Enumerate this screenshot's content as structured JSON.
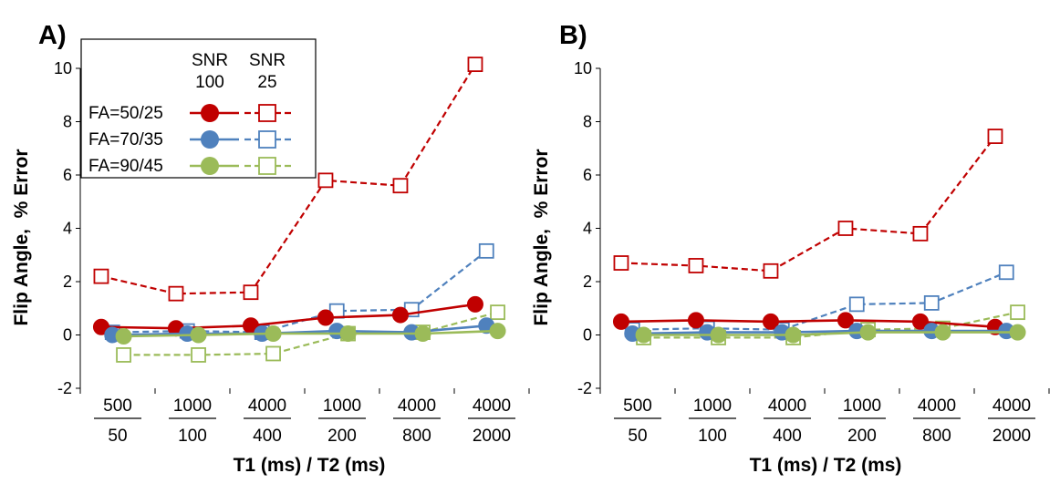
{
  "figure": {
    "y_axis_title": "Flip Angle,  % Error",
    "x_axis_title": "T1 (ms) / T2 (ms)"
  },
  "legend": {
    "col1_line1": "SNR",
    "col1_line2": "100",
    "col2_line1": "SNR",
    "col2_line2": "25",
    "entries": [
      "FA=50/25",
      "FA=70/35",
      "FA=90/45"
    ]
  },
  "colors": {
    "red": "#c00000",
    "blue": "#4f81bd",
    "green": "#9bbb59"
  },
  "chart_data": [
    {
      "type": "line",
      "panel_label": "A)",
      "xlabel": "T1 (ms) / T2 (ms)",
      "ylabel": "Flip Angle,  % Error",
      "ylim": [
        -2,
        10
      ],
      "yticks": [
        "-2",
        "0",
        "2",
        "4",
        "6",
        "8",
        "10"
      ],
      "categories": [
        {
          "t1": "500",
          "t2": "50"
        },
        {
          "t1": "1000",
          "t2": "100"
        },
        {
          "t1": "4000",
          "t2": "400"
        },
        {
          "t1": "1000",
          "t2": "200"
        },
        {
          "t1": "4000",
          "t2": "800"
        },
        {
          "t1": "4000",
          "t2": "2000"
        }
      ],
      "series": [
        {
          "name": "FA=50/25 SNR 100",
          "color": "red",
          "marker": "circle",
          "dash": false,
          "values": [
            0.3,
            0.25,
            0.35,
            0.65,
            0.75,
            1.15
          ]
        },
        {
          "name": "FA=70/35 SNR 100",
          "color": "blue",
          "marker": "circle",
          "dash": false,
          "values": [
            0.0,
            0.05,
            0.05,
            0.15,
            0.1,
            0.35
          ]
        },
        {
          "name": "FA=90/45 SNR 100",
          "color": "green",
          "marker": "circle",
          "dash": false,
          "values": [
            -0.05,
            0.0,
            0.05,
            0.05,
            0.05,
            0.15
          ]
        },
        {
          "name": "FA=50/25 SNR 25",
          "color": "red",
          "marker": "square",
          "dash": true,
          "values": [
            2.2,
            1.55,
            1.6,
            5.8,
            5.6,
            10.15
          ]
        },
        {
          "name": "FA=70/35 SNR 25",
          "color": "blue",
          "marker": "square",
          "dash": true,
          "values": [
            0.1,
            0.15,
            0.1,
            0.9,
            0.95,
            3.15
          ]
        },
        {
          "name": "FA=90/45 SNR 25",
          "color": "green",
          "marker": "square",
          "dash": true,
          "values": [
            -0.75,
            -0.75,
            -0.7,
            0.05,
            0.1,
            0.85
          ]
        }
      ]
    },
    {
      "type": "line",
      "panel_label": "B)",
      "xlabel": "T1 (ms) / T2 (ms)",
      "ylabel": "Flip Angle,  % Error",
      "ylim": [
        -2,
        10
      ],
      "yticks": [
        "-2",
        "0",
        "2",
        "4",
        "6",
        "8",
        "10"
      ],
      "categories": [
        {
          "t1": "500",
          "t2": "50"
        },
        {
          "t1": "1000",
          "t2": "100"
        },
        {
          "t1": "4000",
          "t2": "400"
        },
        {
          "t1": "1000",
          "t2": "200"
        },
        {
          "t1": "4000",
          "t2": "800"
        },
        {
          "t1": "4000",
          "t2": "2000"
        }
      ],
      "series": [
        {
          "name": "FA=50/25 SNR 100",
          "color": "red",
          "marker": "circle",
          "dash": false,
          "values": [
            0.5,
            0.55,
            0.5,
            0.55,
            0.5,
            0.3
          ]
        },
        {
          "name": "FA=70/35 SNR 100",
          "color": "blue",
          "marker": "circle",
          "dash": false,
          "values": [
            0.05,
            0.1,
            0.1,
            0.15,
            0.15,
            0.15
          ]
        },
        {
          "name": "FA=90/45 SNR 100",
          "color": "green",
          "marker": "circle",
          "dash": false,
          "values": [
            0.0,
            0.0,
            0.0,
            0.1,
            0.1,
            0.1
          ]
        },
        {
          "name": "FA=50/25 SNR 25",
          "color": "red",
          "marker": "square",
          "dash": true,
          "values": [
            2.7,
            2.6,
            2.4,
            4.0,
            3.8,
            7.45
          ]
        },
        {
          "name": "FA=70/35 SNR 25",
          "color": "blue",
          "marker": "square",
          "dash": true,
          "values": [
            0.2,
            0.25,
            0.2,
            1.15,
            1.2,
            2.35
          ]
        },
        {
          "name": "FA=90/45 SNR 25",
          "color": "green",
          "marker": "square",
          "dash": true,
          "values": [
            -0.1,
            -0.1,
            -0.1,
            0.2,
            0.25,
            0.85
          ]
        }
      ]
    }
  ]
}
